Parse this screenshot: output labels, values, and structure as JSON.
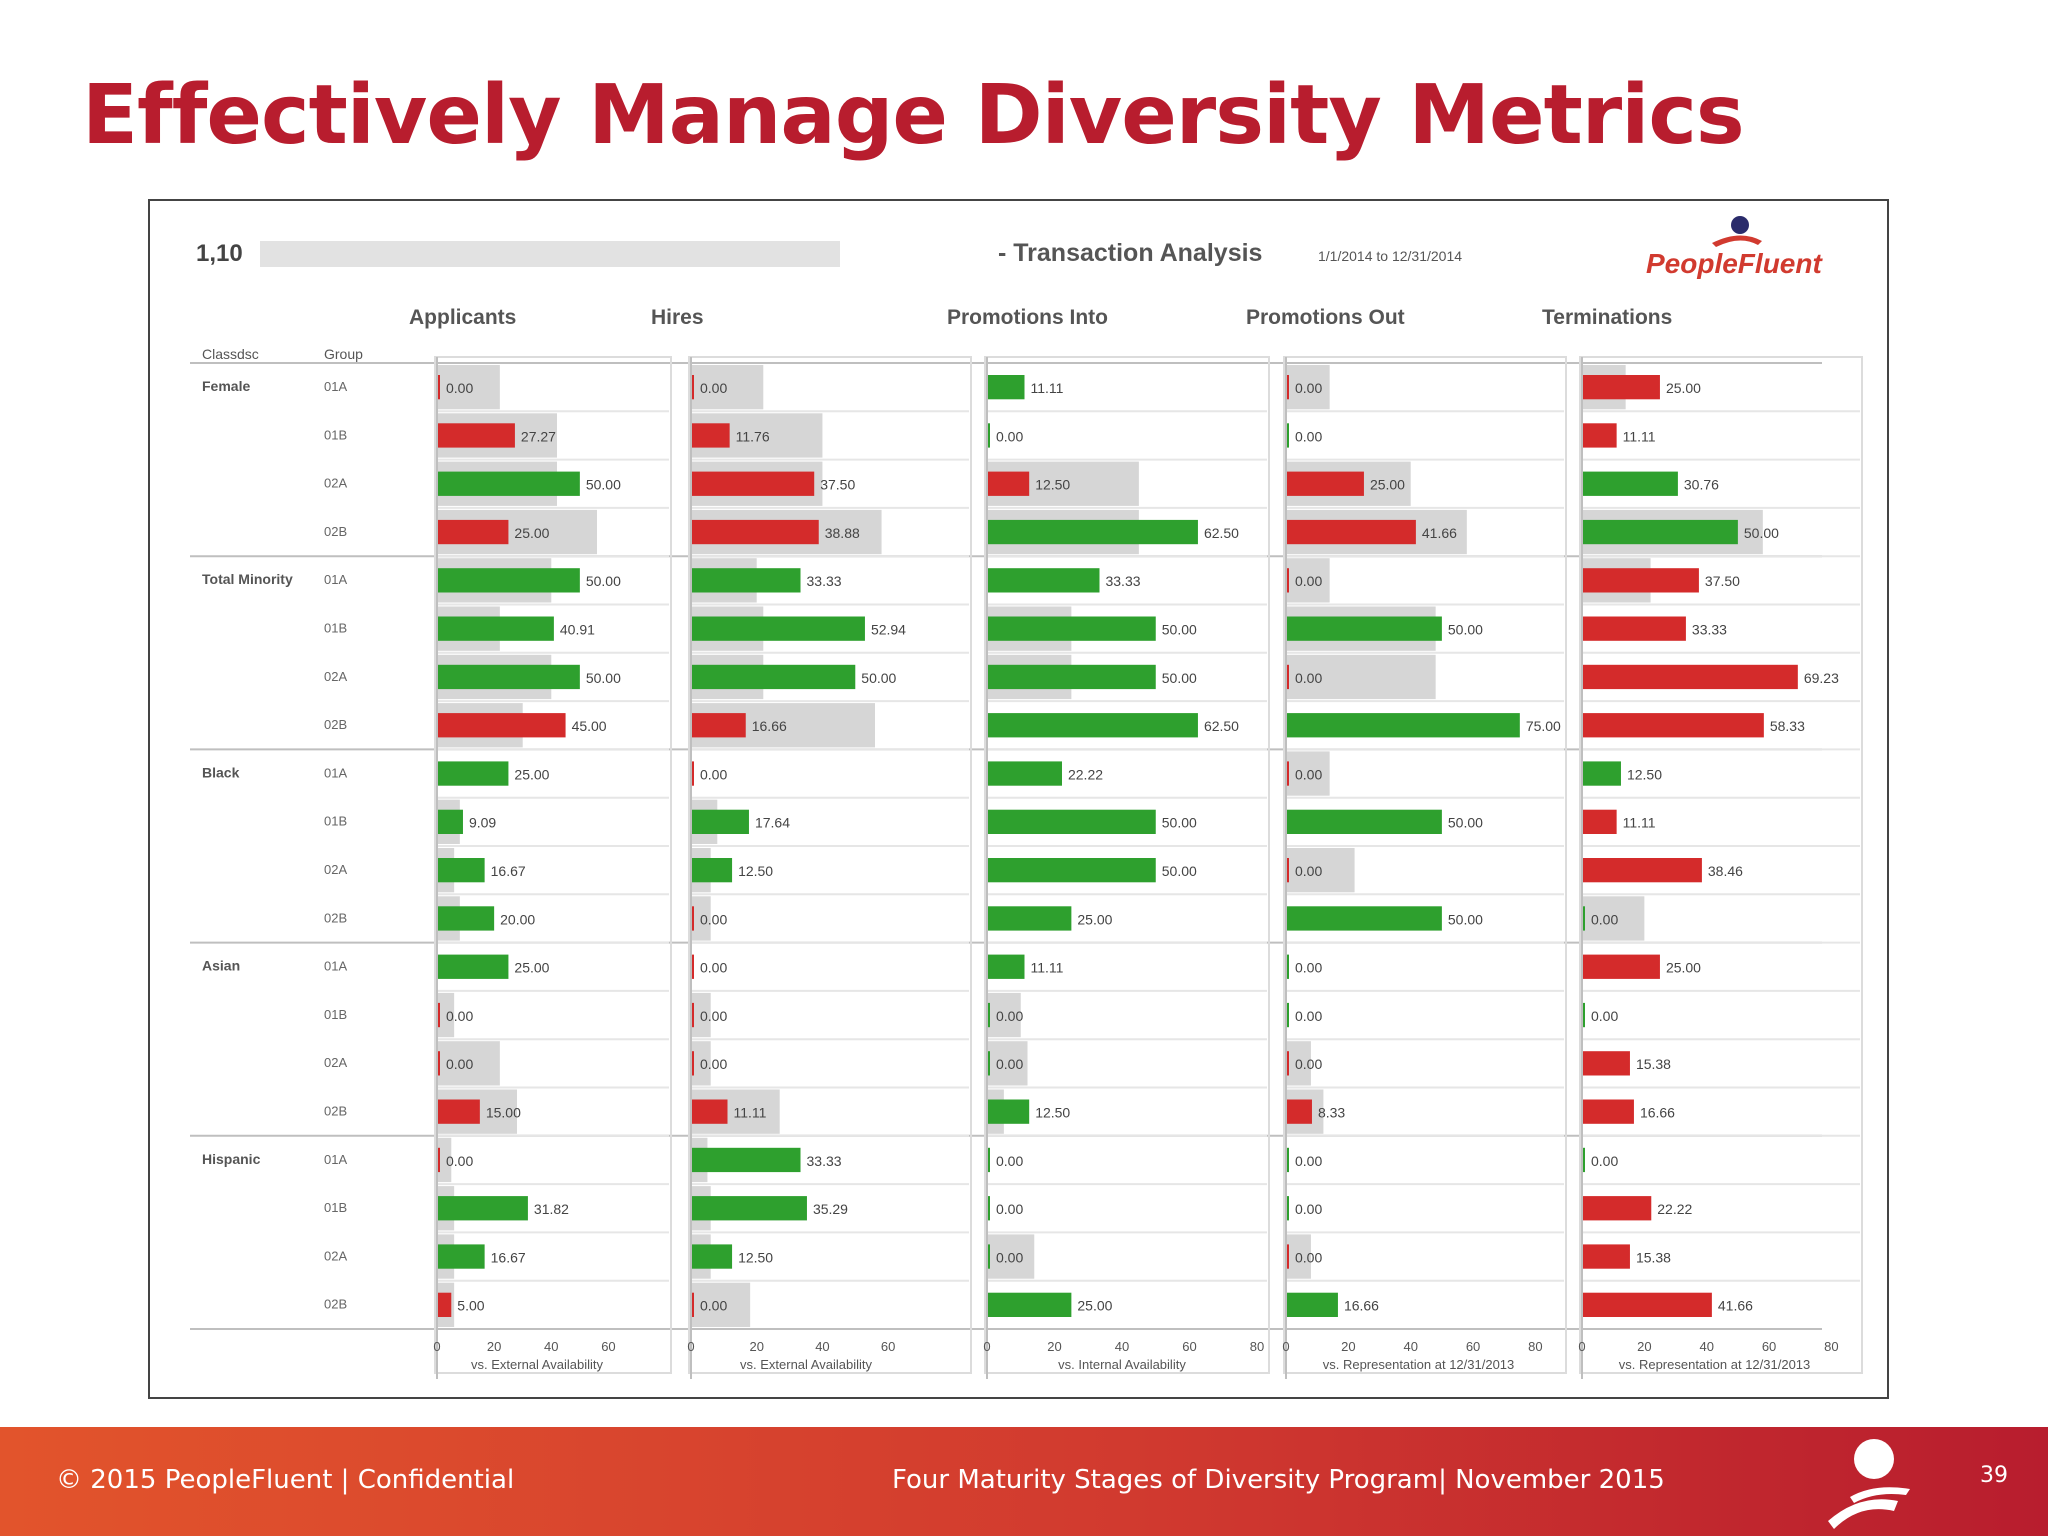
{
  "slide": {
    "title": "Effectively Manage Diversity Metrics",
    "footer_left": "© 2015 PeopleFluent | Confidential",
    "footer_center": "Four Maturity Stages of Diversity Program| November 2015",
    "page_number": "39"
  },
  "colors": {
    "good": "#2ea02e",
    "bad": "#d42b2b",
    "baseline": "#d6d6d6",
    "brand": "#b81d2e"
  },
  "report": {
    "id_prefix": "1,10",
    "title": "- Transaction Analysis",
    "date_range": "1/1/2014 to 12/31/2014",
    "logo_text": "PeopleFluent",
    "col_header_class": "Classdsc",
    "col_header_group": "Group"
  },
  "chart_data": {
    "type": "bar",
    "orientation": "horizontal",
    "classes": [
      {
        "name": "Female",
        "groups": [
          "01A",
          "01B",
          "02A",
          "02B"
        ]
      },
      {
        "name": "Total Minority",
        "groups": [
          "01A",
          "01B",
          "02A",
          "02B"
        ]
      },
      {
        "name": "Black",
        "groups": [
          "01A",
          "01B",
          "02A",
          "02B"
        ]
      },
      {
        "name": "Asian",
        "groups": [
          "01A",
          "01B",
          "02A",
          "02B"
        ]
      },
      {
        "name": "Hispanic",
        "groups": [
          "01A",
          "01B",
          "02A",
          "02B"
        ]
      }
    ],
    "panels": [
      {
        "title": "Applicants",
        "xlabel": "vs. External Availability",
        "ticks": [
          "0",
          "20",
          "40",
          "60"
        ],
        "xlim": [
          0,
          70
        ],
        "values": [
          "0.00",
          "27.27",
          "50.00",
          "25.00",
          "50.00",
          "40.91",
          "50.00",
          "45.00",
          "25.00",
          "9.09",
          "16.67",
          "20.00",
          "25.00",
          "0.00",
          "0.00",
          "15.00",
          "0.00",
          "31.82",
          "16.67",
          "5.00"
        ],
        "status": [
          "bad",
          "bad",
          "good",
          "bad",
          "good",
          "good",
          "good",
          "bad",
          "good",
          "good",
          "good",
          "good",
          "good",
          "bad",
          "bad",
          "bad",
          "bad",
          "good",
          "good",
          "bad"
        ],
        "baseline": [
          22,
          42,
          42,
          56,
          40,
          22,
          40,
          30,
          0,
          8,
          6,
          8,
          0,
          6,
          22,
          28,
          5,
          6,
          6,
          6
        ]
      },
      {
        "title": "Hires",
        "xlabel": "vs. External Availability",
        "ticks": [
          "0",
          "20",
          "40",
          "60"
        ],
        "xlim": [
          0,
          70
        ],
        "values": [
          "0.00",
          "11.76",
          "37.50",
          "38.88",
          "33.33",
          "52.94",
          "50.00",
          "16.66",
          "0.00",
          "17.64",
          "12.50",
          "0.00",
          "0.00",
          "0.00",
          "0.00",
          "11.11",
          "33.33",
          "35.29",
          "12.50",
          "0.00"
        ],
        "status": [
          "bad",
          "bad",
          "bad",
          "bad",
          "good",
          "good",
          "good",
          "bad",
          "bad",
          "good",
          "good",
          "bad",
          "bad",
          "bad",
          "bad",
          "bad",
          "good",
          "good",
          "good",
          "bad"
        ],
        "baseline": [
          22,
          40,
          40,
          58,
          20,
          22,
          22,
          56,
          0,
          8,
          6,
          6,
          0,
          6,
          6,
          27,
          5,
          6,
          6,
          18
        ]
      },
      {
        "title": "Promotions Into",
        "xlabel": "vs. Internal Availability",
        "ticks": [
          "0",
          "20",
          "40",
          "60",
          "80"
        ],
        "xlim": [
          0,
          80
        ],
        "values": [
          "11.11",
          "0.00",
          "12.50",
          "62.50",
          "33.33",
          "50.00",
          "50.00",
          "62.50",
          "22.22",
          "50.00",
          "50.00",
          "25.00",
          "11.11",
          "0.00",
          "0.00",
          "12.50",
          "0.00",
          "0.00",
          "0.00",
          "25.00"
        ],
        "status": [
          "good",
          "good",
          "bad",
          "good",
          "good",
          "good",
          "good",
          "good",
          "good",
          "good",
          "good",
          "good",
          "good",
          "good",
          "good",
          "good",
          "good",
          "good",
          "good",
          "good"
        ],
        "baseline": [
          0,
          0,
          45,
          45,
          0,
          25,
          25,
          0,
          0,
          0,
          0,
          0,
          0,
          10,
          12,
          5,
          0,
          0,
          14,
          0
        ]
      },
      {
        "title": "Promotions Out",
        "xlabel": "vs. Representation at 12/31/2013",
        "ticks": [
          "0",
          "20",
          "40",
          "60",
          "80"
        ],
        "xlim": [
          0,
          85
        ],
        "values": [
          "0.00",
          "0.00",
          "25.00",
          "41.66",
          "0.00",
          "50.00",
          "0.00",
          "75.00",
          "0.00",
          "50.00",
          "0.00",
          "50.00",
          "0.00",
          "0.00",
          "0.00",
          "8.33",
          "0.00",
          "0.00",
          "0.00",
          "16.66"
        ],
        "status": [
          "bad",
          "good",
          "bad",
          "bad",
          "bad",
          "good",
          "bad",
          "good",
          "bad",
          "good",
          "bad",
          "good",
          "good",
          "good",
          "bad",
          "bad",
          "good",
          "good",
          "bad",
          "good"
        ],
        "baseline": [
          14,
          0,
          40,
          58,
          14,
          48,
          48,
          0,
          14,
          0,
          22,
          0,
          0,
          0,
          8,
          12,
          0,
          0,
          8,
          0
        ]
      },
      {
        "title": "Terminations",
        "xlabel": "vs. Representation at 12/31/2013",
        "ticks": [
          "0",
          "20",
          "40",
          "60",
          "80"
        ],
        "xlim": [
          0,
          85
        ],
        "values": [
          "25.00",
          "11.11",
          "30.76",
          "50.00",
          "37.50",
          "33.33",
          "69.23",
          "58.33",
          "12.50",
          "11.11",
          "38.46",
          "0.00",
          "25.00",
          "0.00",
          "15.38",
          "16.66",
          "0.00",
          "22.22",
          "15.38",
          "41.66"
        ],
        "status": [
          "bad",
          "bad",
          "good",
          "good",
          "bad",
          "bad",
          "bad",
          "bad",
          "good",
          "bad",
          "bad",
          "good",
          "bad",
          "good",
          "bad",
          "bad",
          "good",
          "bad",
          "bad",
          "bad"
        ],
        "baseline": [
          14,
          0,
          0,
          58,
          22,
          0,
          0,
          0,
          0,
          0,
          0,
          20,
          0,
          0,
          0,
          0,
          0,
          0,
          0,
          0
        ]
      }
    ]
  }
}
